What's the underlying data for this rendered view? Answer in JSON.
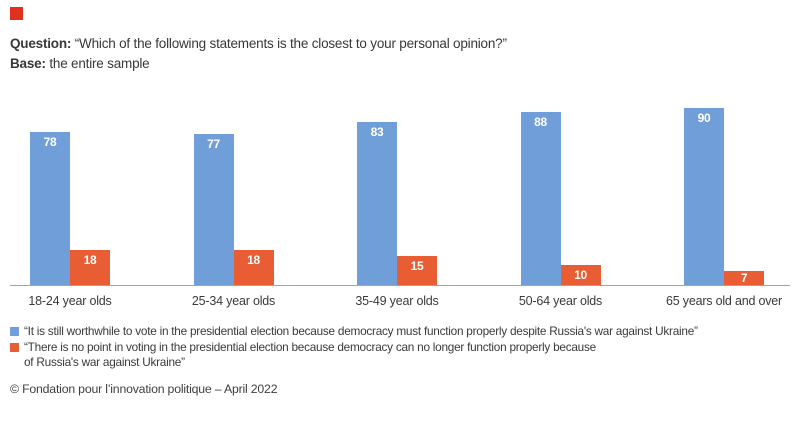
{
  "header": {
    "question_label": "Question:",
    "question_text": " “Which of the following statements is the closest to your personal opinion?”",
    "base_label": "Base:",
    "base_text": " the entire sample"
  },
  "chart_data": {
    "type": "bar",
    "title": "",
    "categories": [
      "18-24 year olds",
      "25-34 year olds",
      "35-49 year olds",
      "50-64 year olds",
      "65 years old and over"
    ],
    "series": [
      {
        "name": "“It is still worthwhile to vote in the presidential election because democracy must function properly despite Russia's war against Ukraine”",
        "color": "#6f9ed9",
        "values": [
          78,
          77,
          83,
          88,
          90
        ]
      },
      {
        "name": "“There is no point in voting in the presidential election because democracy can no longer function properly because\nof Russia's war against Ukraine”",
        "color": "#e85d33",
        "values": [
          18,
          18,
          15,
          10,
          7
        ]
      }
    ],
    "xlabel": "",
    "ylabel": "",
    "ylim": [
      0,
      94
    ],
    "grid": false,
    "value_labels": true,
    "legend_position": "bottom"
  },
  "footer": {
    "credit": "© Fondation pour l’innovation politique – April 2022"
  },
  "colors": {
    "blue": "#6f9ed9",
    "orange": "#e85d33",
    "logo_red": "#e0301e",
    "axis": "#a3a3a3",
    "text": "#3a3a3a"
  }
}
